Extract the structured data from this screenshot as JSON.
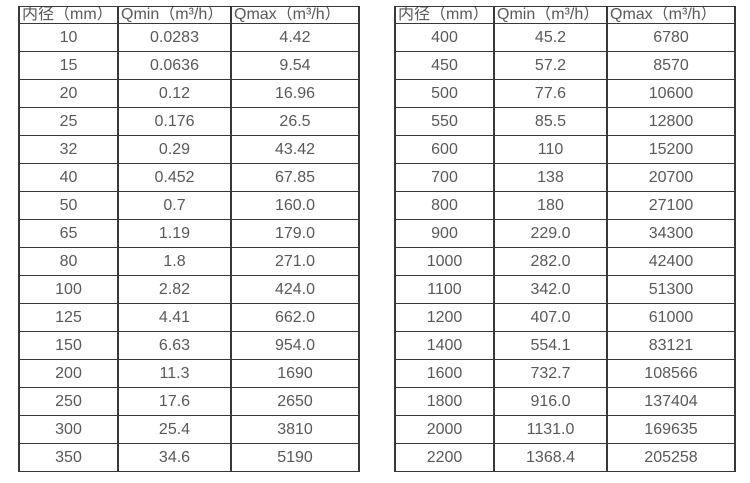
{
  "colors": {
    "background": "#ffffff",
    "border": "#383838",
    "text": "#595959"
  },
  "tables": [
    {
      "name": "flow-rate-table-small-diameters",
      "headers": [
        "内径（mm）",
        "Qmin（m³/h）",
        "Qmax（m³/h）"
      ],
      "rows": [
        [
          "10",
          "0.0283",
          "4.42"
        ],
        [
          "15",
          "0.0636",
          "9.54"
        ],
        [
          "20",
          "0.12",
          "16.96"
        ],
        [
          "25",
          "0.176",
          "26.5"
        ],
        [
          "32",
          "0.29",
          "43.42"
        ],
        [
          "40",
          "0.452",
          "67.85"
        ],
        [
          "50",
          "0.7",
          "160.0"
        ],
        [
          "65",
          "1.19",
          "179.0"
        ],
        [
          "80",
          "1.8",
          "271.0"
        ],
        [
          "100",
          "2.82",
          "424.0"
        ],
        [
          "125",
          "4.41",
          "662.0"
        ],
        [
          "150",
          "6.63",
          "954.0"
        ],
        [
          "200",
          "11.3",
          "1690"
        ],
        [
          "250",
          "17.6",
          "2650"
        ],
        [
          "300",
          "25.4",
          "3810"
        ],
        [
          "350",
          "34.6",
          "5190"
        ]
      ]
    },
    {
      "name": "flow-rate-table-large-diameters",
      "headers": [
        "内径（mm）",
        "Qmin（m³/h）",
        "Qmax（m³/h）"
      ],
      "rows": [
        [
          "400",
          "45.2",
          "6780"
        ],
        [
          "450",
          "57.2",
          "8570"
        ],
        [
          "500",
          "77.6",
          "10600"
        ],
        [
          "550",
          "85.5",
          "12800"
        ],
        [
          "600",
          "110",
          "15200"
        ],
        [
          "700",
          "138",
          "20700"
        ],
        [
          "800",
          "180",
          "27100"
        ],
        [
          "900",
          "229.0",
          "34300"
        ],
        [
          "1000",
          "282.0",
          "42400"
        ],
        [
          "1100",
          "342.0",
          "51300"
        ],
        [
          "1200",
          "407.0",
          "61000"
        ],
        [
          "1400",
          "554.1",
          "83121"
        ],
        [
          "1600",
          "732.7",
          "108566"
        ],
        [
          "1800",
          "916.0",
          "137404"
        ],
        [
          "2000",
          "1131.0",
          "169635"
        ],
        [
          "2200",
          "1368.4",
          "205258"
        ]
      ]
    }
  ]
}
